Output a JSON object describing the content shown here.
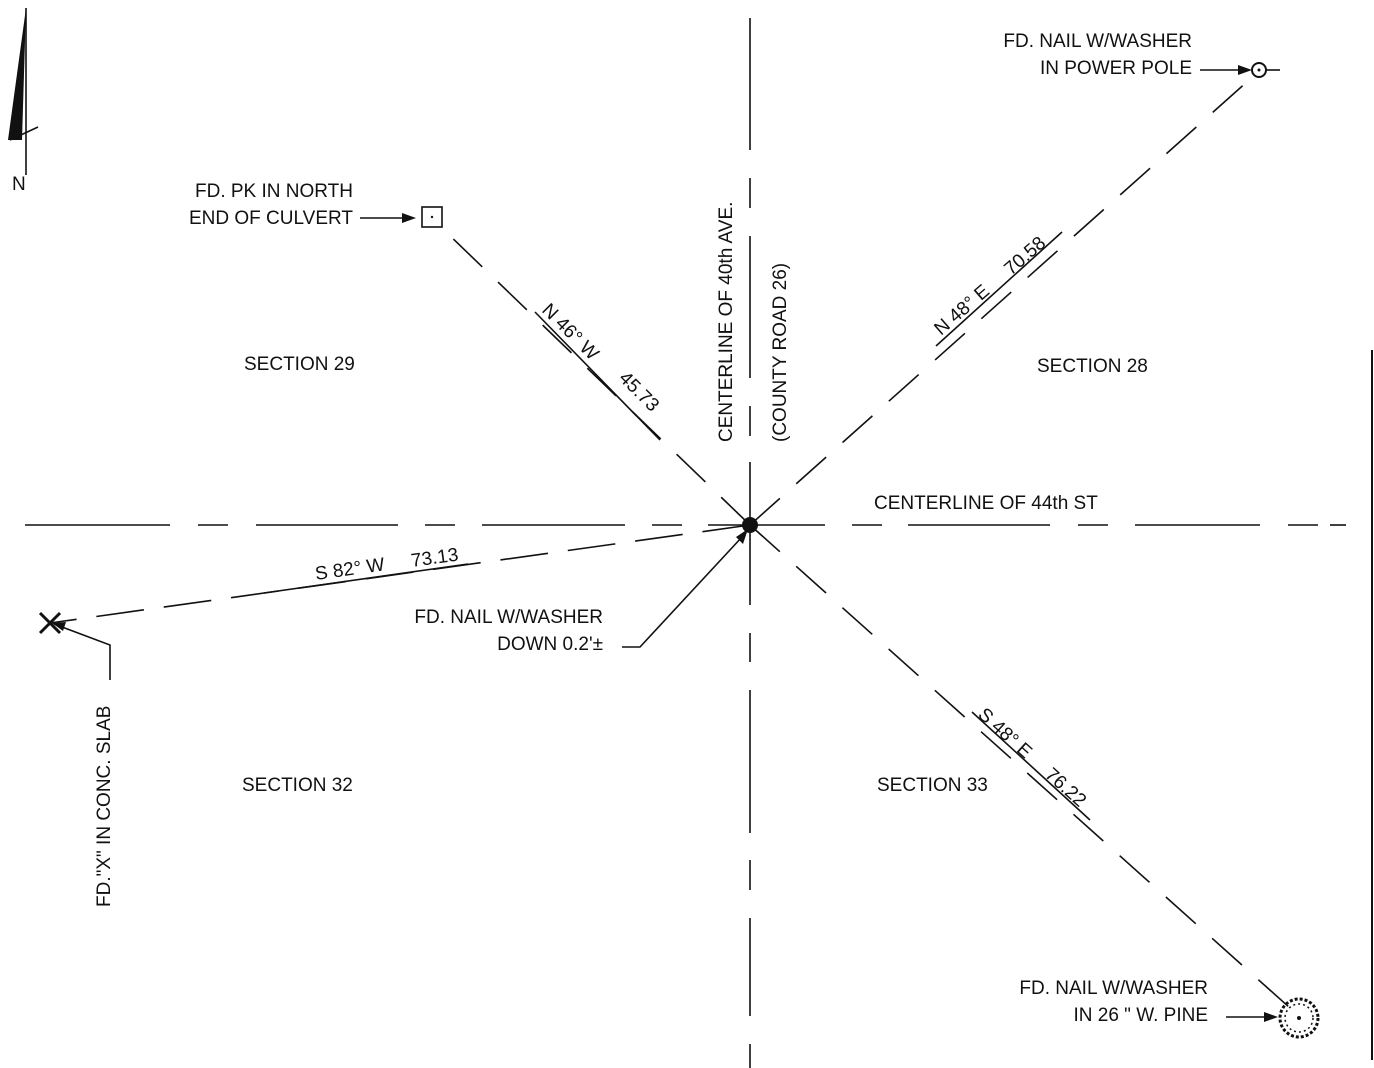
{
  "north_arrow": {
    "label": "N",
    "icon": "north-arrow-icon"
  },
  "roads": {
    "north_south_line1": "CENTERLINE OF 40th AVE.",
    "north_south_line2": "(COUNTY ROAD 26)",
    "east_west": "CENTERLINE OF 44th ST"
  },
  "sections": {
    "nw": "SECTION 29",
    "ne": "SECTION 28",
    "sw": "SECTION 32",
    "se": "SECTION 33"
  },
  "monuments": {
    "nw": {
      "line1": "FD. PK IN NORTH",
      "line2": "END OF CULVERT",
      "icon": "square-marker-icon"
    },
    "ne": {
      "line1": "FD. NAIL W/WASHER",
      "line2": "IN POWER POLE",
      "icon": "circle-marker-icon"
    },
    "center": {
      "line1": "FD. NAIL W/WASHER",
      "line2": "DOWN 0.2'±",
      "icon": "filled-dot-icon"
    },
    "sw": {
      "text": "FD.\"X\" IN CONC. SLAB",
      "icon": "x-marker-icon"
    },
    "se": {
      "line1": "FD. NAIL W/WASHER",
      "line2": "IN 26 \" W. PINE",
      "icon": "tree-marker-icon"
    }
  },
  "ties": {
    "nw": {
      "bearing": "N 46° W",
      "distance": "45.73"
    },
    "ne": {
      "bearing": "N 48° E",
      "distance": "70.58"
    },
    "sw": {
      "bearing": "S 82° W",
      "distance": "73.13"
    },
    "se": {
      "bearing": "S 48° E",
      "distance": "76.22"
    }
  }
}
